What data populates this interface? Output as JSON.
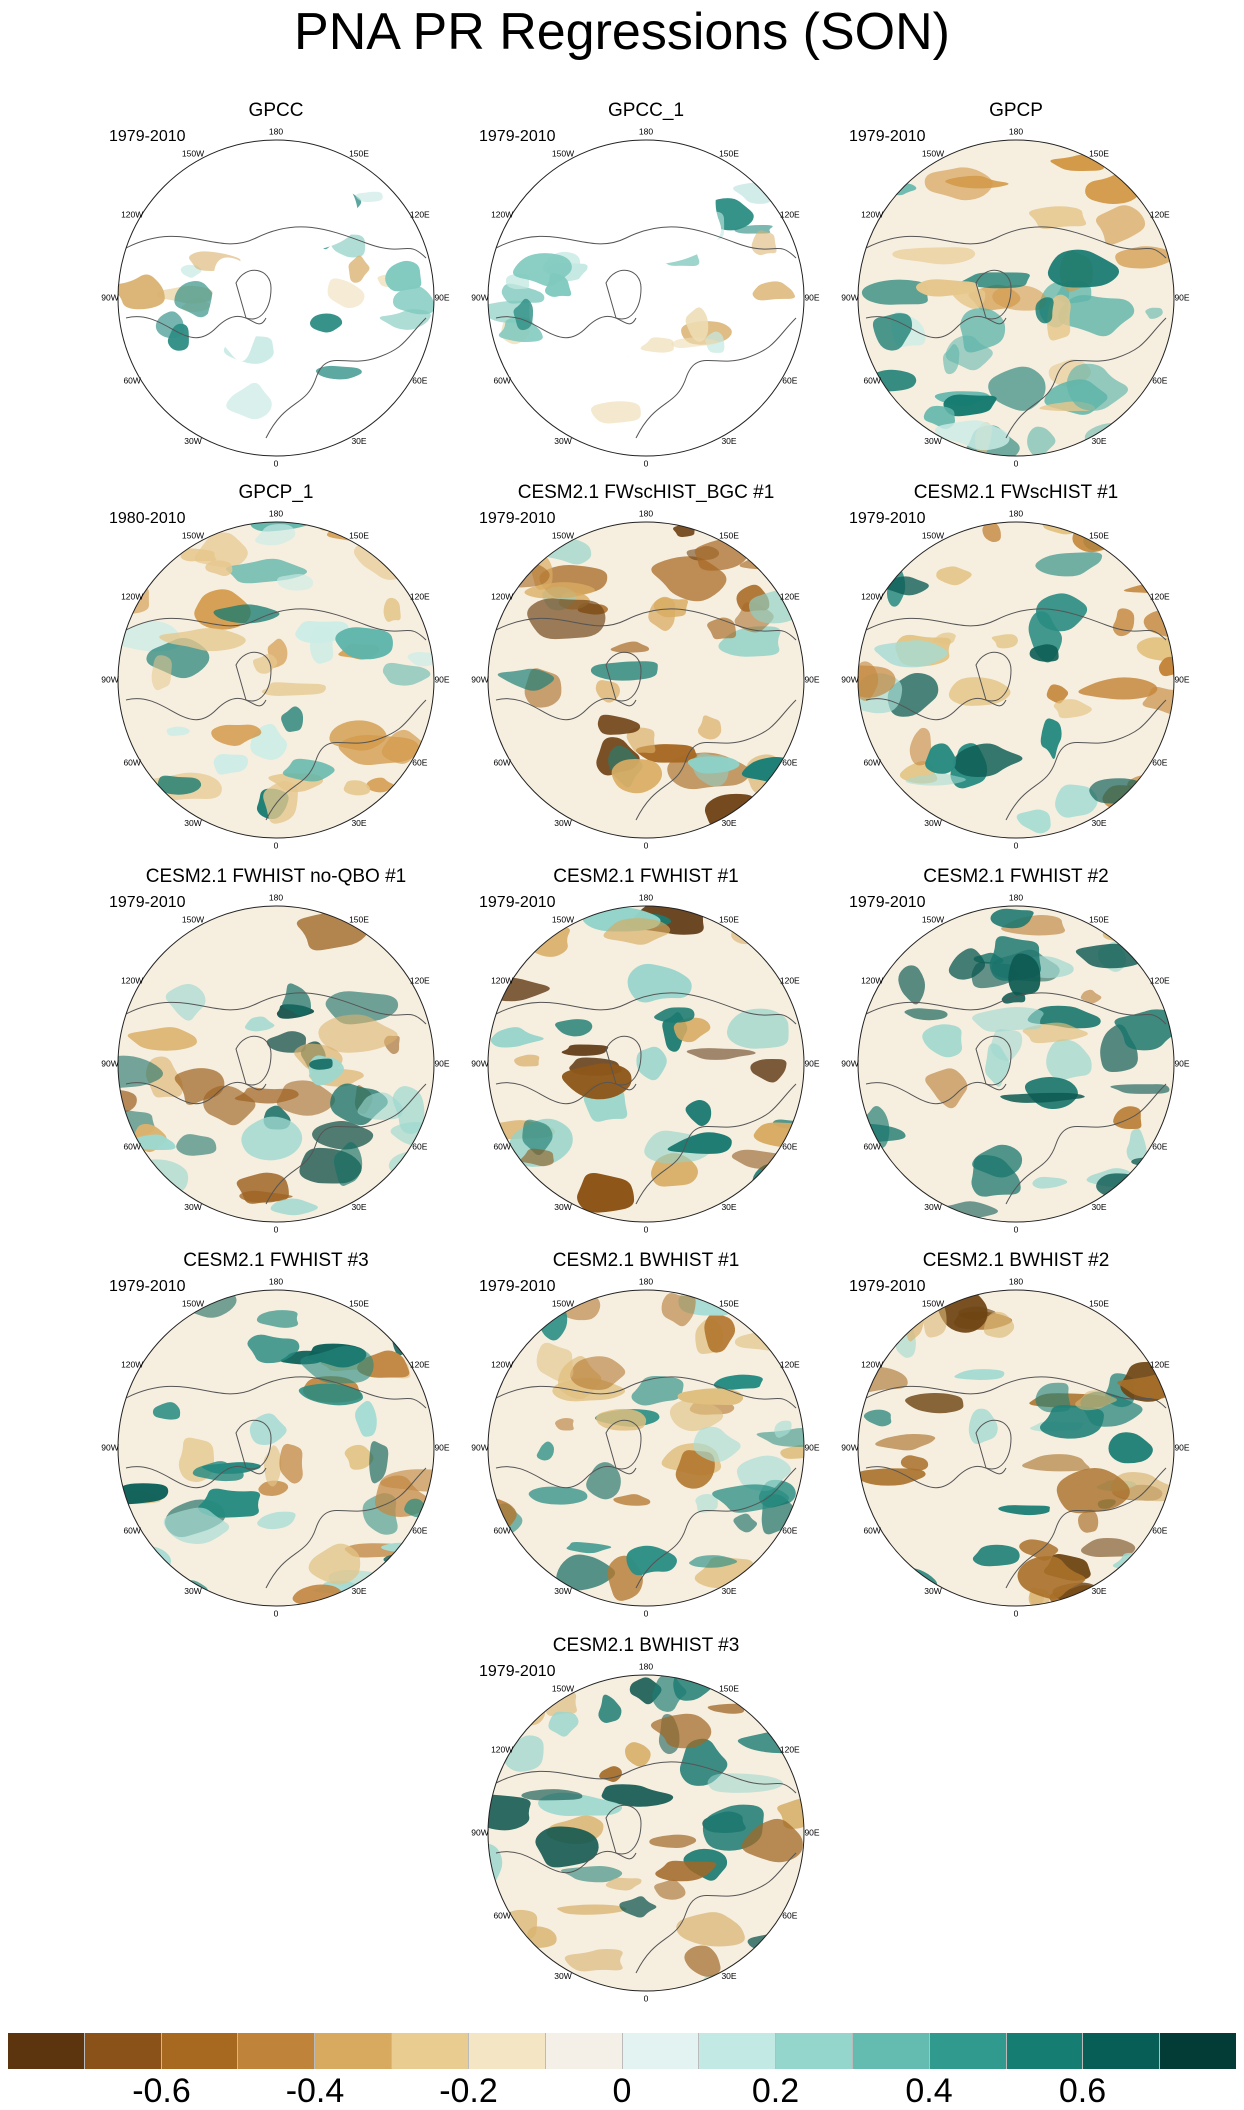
{
  "title": "PNA PR Regressions (SON)",
  "longitude_labels": [
    "180",
    "150E",
    "120E",
    "90E",
    "60E",
    "30E",
    "0",
    "30W",
    "60W",
    "90W",
    "120W",
    "150W"
  ],
  "panels": [
    {
      "title": "GPCC",
      "period": "1979-2010",
      "coverage": "land-only",
      "colors": [
        "#eedcb4",
        "#7fc9be",
        "#d9b06c",
        "#c4e8e2",
        "#2f8f85"
      ]
    },
    {
      "title": "GPCC_1",
      "period": "1979-2010",
      "coverage": "land-only",
      "colors": [
        "#eedcb4",
        "#7fc9be",
        "#d9b06c",
        "#c4e8e2",
        "#2f8f85"
      ]
    },
    {
      "title": "GPCP",
      "period": "1979-2010",
      "coverage": "global",
      "colors": [
        "#d39a4a",
        "#5fb5aa",
        "#e6c78d",
        "#cbece6",
        "#157a70"
      ]
    },
    {
      "title": "GPCP_1",
      "period": "1980-2010",
      "coverage": "global",
      "colors": [
        "#d39a4a",
        "#5fb5aa",
        "#e6c78d",
        "#cbece6",
        "#157a70"
      ]
    },
    {
      "title": "CESM2.1 FWscHIST_BGC #1",
      "period": "1979-2010",
      "coverage": "global",
      "colors": [
        "#a86a25",
        "#1f8077",
        "#d9ac62",
        "#8fd1c7",
        "#6b3d0f"
      ]
    },
    {
      "title": "CESM2.1 FWscHIST #1",
      "period": "1979-2010",
      "coverage": "global",
      "colors": [
        "#c4853a",
        "#2a8c82",
        "#e3c383",
        "#a5dbd3",
        "#0e5e56"
      ]
    },
    {
      "title": "CESM2.1 FWHIST no-QBO #1",
      "period": "1979-2010",
      "coverage": "global",
      "colors": [
        "#9e6322",
        "#176e66",
        "#dcb36e",
        "#9dd8cf",
        "#0a4a44"
      ]
    },
    {
      "title": "CESM2.1 FWHIST #1",
      "period": "1979-2010",
      "coverage": "global",
      "colors": [
        "#8e5619",
        "#1c7a71",
        "#d7aa60",
        "#92d3c9",
        "#5c3410"
      ]
    },
    {
      "title": "CESM2.1 FWHIST #2",
      "period": "1979-2010",
      "coverage": "global",
      "colors": [
        "#b77a30",
        "#1a766d",
        "#dfbd7a",
        "#9fd7ce",
        "#0d5a52"
      ]
    },
    {
      "title": "CESM2.1 FWHIST #3",
      "period": "1979-2010",
      "coverage": "global",
      "colors": [
        "#c28843",
        "#268a80",
        "#e2c487",
        "#a6dcd4",
        "#0f625a"
      ]
    },
    {
      "title": "CESM2.1 BWHIST #1",
      "period": "1979-2010",
      "coverage": "global",
      "colors": [
        "#b3772f",
        "#2a8e84",
        "#e0bf7f",
        "#a8ddd5",
        "#126a61"
      ]
    },
    {
      "title": "CESM2.1 BWHIST #2",
      "period": "1979-2010",
      "coverage": "global",
      "colors": [
        "#a9702a",
        "#1f8077",
        "#dcb877",
        "#a0d9d0",
        "#6e4413"
      ]
    },
    {
      "title": "CESM2.1 BWHIST #3",
      "period": "1979-2010",
      "coverage": "global",
      "colors": [
        "#a16826",
        "#1d7c73",
        "#dab472",
        "#9ad6cd",
        "#0c544d"
      ]
    }
  ],
  "colorbar": {
    "colors": [
      "#5c340d",
      "#8a5119",
      "#a6691f",
      "#c0833a",
      "#d7aa5f",
      "#e8cc90",
      "#f4e6c4",
      "#f4f0e7",
      "#e3f3f1",
      "#c3e9e4",
      "#95d6cc",
      "#64bcb1",
      "#319a8f",
      "#167d73",
      "#075e56",
      "#033c36"
    ],
    "labels": [
      "-0.6",
      "-0.4",
      "-0.2",
      "0",
      "0.2",
      "0.4",
      "0.6"
    ],
    "label_boundaries": [
      1,
      3,
      5,
      7,
      9,
      11,
      13
    ]
  }
}
